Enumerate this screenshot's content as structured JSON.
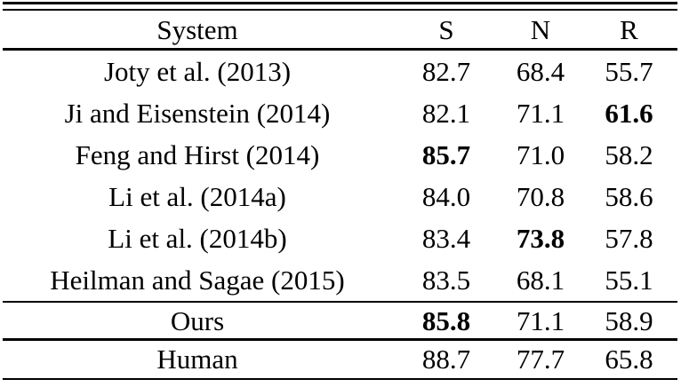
{
  "table": {
    "columns": [
      "System",
      "S",
      "N",
      "R"
    ],
    "rows": [
      {
        "system": "Joty et al. (2013)",
        "values": [
          "82.7",
          "68.4",
          "55.7"
        ],
        "bold": []
      },
      {
        "system": "Ji and Eisenstein (2014)",
        "values": [
          "82.1",
          "71.1",
          "61.6"
        ],
        "bold": [
          2
        ]
      },
      {
        "system": "Feng and Hirst (2014)",
        "values": [
          "85.7",
          "71.0",
          "58.2"
        ],
        "bold": [
          0
        ]
      },
      {
        "system": "Li et al. (2014a)",
        "values": [
          "84.0",
          "70.8",
          "58.6"
        ],
        "bold": []
      },
      {
        "system": "Li et al. (2014b)",
        "values": [
          "83.4",
          "73.8",
          "57.8"
        ],
        "bold": [
          1
        ]
      },
      {
        "system": "Heilman and Sagae (2015)",
        "values": [
          "83.5",
          "68.1",
          "55.1"
        ],
        "bold": []
      }
    ],
    "ours_row": {
      "system": "Ours",
      "values": [
        "85.8",
        "71.1",
        "58.9"
      ],
      "bold": [
        0
      ]
    },
    "human_row": {
      "system": "Human",
      "values": [
        "88.7",
        "77.7",
        "65.8"
      ],
      "bold": []
    }
  },
  "colors": {
    "text": "#000000",
    "background": "#ffffff",
    "rule": "#000000"
  }
}
